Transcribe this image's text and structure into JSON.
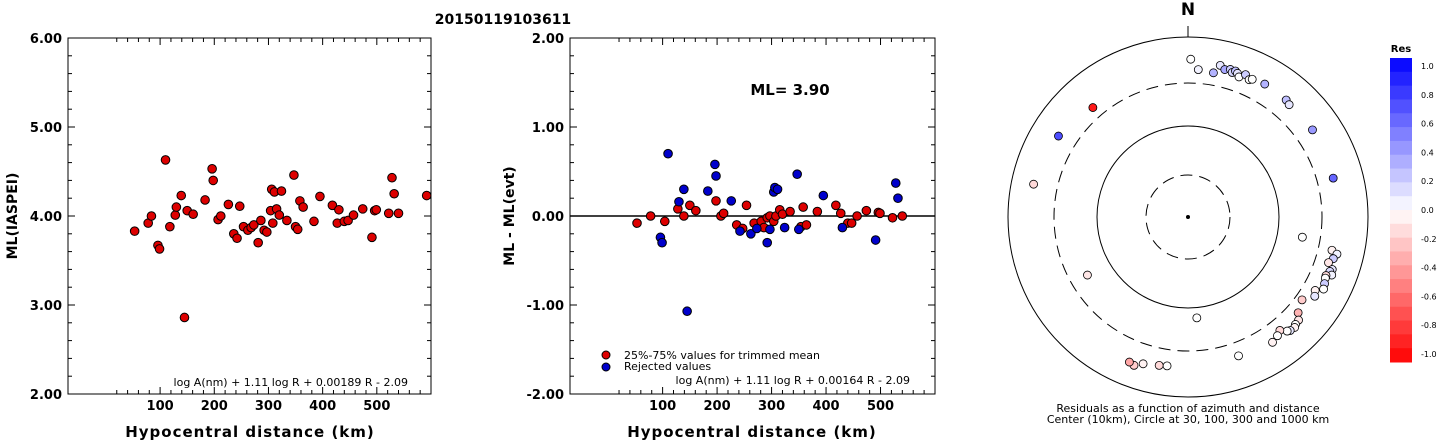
{
  "figure": {
    "title": "20150119103611"
  },
  "chart_data": [
    {
      "type": "scatter",
      "title": "",
      "xlabel": "Hypocentral distance (km)",
      "ylabel": "ML(IASPEI)",
      "xlim": [
        -70,
        600
      ],
      "ylim": [
        2.0,
        6.0
      ],
      "xticks": [
        100,
        200,
        300,
        400,
        500
      ],
      "yticks": [
        "2.00",
        "3.00",
        "4.00",
        "5.00",
        "6.00"
      ],
      "formula": "log A(nm) + 1.11 log R + 0.00189 R - 2.09",
      "point_color": "#dd0000",
      "series": [
        {
          "points": [
            [
              53,
              3.83
            ],
            [
              78,
              3.92
            ],
            [
              84,
              4.0
            ],
            [
              96,
              3.67
            ],
            [
              99,
              3.63
            ],
            [
              110,
              4.63
            ],
            [
              118,
              3.88
            ],
            [
              128,
              4.01
            ],
            [
              130,
              4.1
            ],
            [
              139,
              4.23
            ],
            [
              145,
              2.86
            ],
            [
              150,
              4.06
            ],
            [
              161,
              4.02
            ],
            [
              183,
              4.18
            ],
            [
              196,
              4.53
            ],
            [
              198,
              4.4
            ],
            [
              207,
              3.96
            ],
            [
              212,
              4.0
            ],
            [
              226,
              4.13
            ],
            [
              236,
              3.8
            ],
            [
              242,
              3.75
            ],
            [
              247,
              4.11
            ],
            [
              254,
              3.88
            ],
            [
              262,
              3.84
            ],
            [
              268,
              3.87
            ],
            [
              273,
              3.9
            ],
            [
              281,
              3.7
            ],
            [
              286,
              3.95
            ],
            [
              292,
              3.84
            ],
            [
              297,
              3.82
            ],
            [
              304,
              4.06
            ],
            [
              306,
              4.3
            ],
            [
              308,
              3.92
            ],
            [
              311,
              4.27
            ],
            [
              315,
              4.08
            ],
            [
              320,
              4.01
            ],
            [
              324,
              4.28
            ],
            [
              334,
              3.95
            ],
            [
              347,
              4.46
            ],
            [
              350,
              3.88
            ],
            [
              354,
              3.85
            ],
            [
              358,
              4.17
            ],
            [
              364,
              4.1
            ],
            [
              384,
              3.94
            ],
            [
              395,
              4.22
            ],
            [
              418,
              4.12
            ],
            [
              427,
              3.92
            ],
            [
              430,
              4.07
            ],
            [
              440,
              3.94
            ],
            [
              447,
              3.95
            ],
            [
              457,
              4.01
            ],
            [
              474,
              4.08
            ],
            [
              491,
              3.76
            ],
            [
              496,
              4.06
            ],
            [
              499,
              4.07
            ],
            [
              522,
              4.03
            ],
            [
              528,
              4.43
            ],
            [
              532,
              4.25
            ],
            [
              540,
              4.03
            ],
            [
              592,
              4.23
            ]
          ]
        }
      ]
    },
    {
      "type": "scatter",
      "title": "",
      "xlabel": "Hypocentral distance (km)",
      "ylabel": "ML - ML(evt)",
      "xlim": [
        -70,
        600
      ],
      "ylim": [
        -2.0,
        2.0
      ],
      "xticks": [
        100,
        200,
        300,
        400,
        500
      ],
      "yticks": [
        "-2.00",
        "-1.00",
        "0.00",
        "1.00",
        "2.00"
      ],
      "annotation": "ML= 3.90",
      "formula": "log A(nm) + 1.11 log R + 0.00164 R - 2.09",
      "zero_line": true,
      "series": [
        {
          "name": "25%-75% values for trimmed mean",
          "color": "#dd0000",
          "points": [
            [
              53,
              -0.08
            ],
            [
              78,
              0.0
            ],
            [
              104,
              -0.06
            ],
            [
              128,
              0.08
            ],
            [
              139,
              0.0
            ],
            [
              150,
              0.12
            ],
            [
              161,
              0.06
            ],
            [
              198,
              0.17
            ],
            [
              207,
              0.0
            ],
            [
              212,
              0.03
            ],
            [
              236,
              -0.1
            ],
            [
              247,
              -0.14
            ],
            [
              254,
              0.12
            ],
            [
              268,
              -0.08
            ],
            [
              281,
              -0.06
            ],
            [
              286,
              -0.13
            ],
            [
              292,
              -0.02
            ],
            [
              297,
              0.0
            ],
            [
              304,
              -0.06
            ],
            [
              308,
              0.0
            ],
            [
              315,
              0.07
            ],
            [
              320,
              0.02
            ],
            [
              334,
              0.05
            ],
            [
              354,
              -0.12
            ],
            [
              358,
              0.1
            ],
            [
              364,
              -0.1
            ],
            [
              384,
              0.05
            ],
            [
              418,
              0.12
            ],
            [
              427,
              0.03
            ],
            [
              440,
              -0.08
            ],
            [
              447,
              -0.08
            ],
            [
              457,
              0.0
            ],
            [
              474,
              0.06
            ],
            [
              496,
              0.04
            ],
            [
              499,
              0.03
            ],
            [
              522,
              -0.02
            ],
            [
              540,
              0.0
            ]
          ]
        },
        {
          "name": "Rejected values",
          "color": "#0000cc",
          "points": [
            [
              96,
              -0.24
            ],
            [
              99,
              -0.3
            ],
            [
              110,
              0.7
            ],
            [
              130,
              0.16
            ],
            [
              139,
              0.3
            ],
            [
              145,
              -1.07
            ],
            [
              183,
              0.28
            ],
            [
              196,
              0.58
            ],
            [
              198,
              0.45
            ],
            [
              226,
              0.17
            ],
            [
              242,
              -0.17
            ],
            [
              262,
              -0.2
            ],
            [
              273,
              -0.14
            ],
            [
              292,
              -0.3
            ],
            [
              297,
              -0.15
            ],
            [
              304,
              0.27
            ],
            [
              306,
              0.32
            ],
            [
              311,
              0.3
            ],
            [
              324,
              -0.13
            ],
            [
              347,
              0.47
            ],
            [
              350,
              -0.15
            ],
            [
              395,
              0.23
            ],
            [
              430,
              -0.13
            ],
            [
              491,
              -0.27
            ],
            [
              528,
              0.37
            ],
            [
              532,
              0.2
            ]
          ]
        }
      ]
    },
    {
      "type": "polar-scatter",
      "title": "N",
      "caption_line1": "Residuals as a function of azimuth and distance",
      "caption_line2": "Center (10km), Circle at 30, 100, 300 and 1000 km",
      "colorbar": {
        "title": "Res",
        "labels": [
          "1.0",
          "0.8",
          "0.6",
          "0.4",
          "0.2",
          "0.0",
          "-0.2",
          "-0.4",
          "-0.6",
          "-0.8",
          "-1.0"
        ]
      },
      "rings_km": [
        30,
        100,
        300,
        1000
      ],
      "points": [
        {
          "az": 1,
          "dist_km": 560,
          "res": 0.0
        },
        {
          "az": 4,
          "dist_km": 430,
          "res": 0.05
        },
        {
          "az": 10,
          "dist_km": 415,
          "res": 0.3
        },
        {
          "az": 12,
          "dist_km": 520,
          "res": 0.1
        },
        {
          "az": 14,
          "dist_km": 480,
          "res": 0.35
        },
        {
          "az": 16,
          "dist_km": 500,
          "res": 0.2
        },
        {
          "az": 17,
          "dist_km": 470,
          "res": 0.15
        },
        {
          "az": 18,
          "dist_km": 500,
          "res": 0.25
        },
        {
          "az": 19,
          "dist_km": 480,
          "res": 0.1
        },
        {
          "az": 20,
          "dist_km": 445,
          "res": 0.0
        },
        {
          "az": 22,
          "dist_km": 500,
          "res": 0.2
        },
        {
          "az": 24,
          "dist_km": 460,
          "res": 0.0
        },
        {
          "az": 25,
          "dist_km": 480,
          "res": 0.0
        },
        {
          "az": 30,
          "dist_km": 500,
          "res": 0.3
        },
        {
          "az": 40,
          "dist_km": 490,
          "res": 0.25
        },
        {
          "az": 42,
          "dist_km": 470,
          "res": 0.1
        },
        {
          "az": 55,
          "dist_km": 480,
          "res": 0.4
        },
        {
          "az": 75,
          "dist_km": 460,
          "res": 0.6
        },
        {
          "az": 100,
          "dist_km": 190,
          "res": 0.0
        },
        {
          "az": 103,
          "dist_km": 430,
          "res": -0.05
        },
        {
          "az": 104,
          "dist_km": 500,
          "res": 0.05
        },
        {
          "az": 106,
          "dist_km": 470,
          "res": 0.2
        },
        {
          "az": 108,
          "dist_km": 430,
          "res": -0.1
        },
        {
          "az": 110,
          "dist_km": 500,
          "res": 0.1
        },
        {
          "az": 111,
          "dist_km": 480,
          "res": 0.15
        },
        {
          "az": 112,
          "dist_km": 520,
          "res": 0.05
        },
        {
          "az": 113,
          "dist_km": 455,
          "res": -0.15
        },
        {
          "az": 114,
          "dist_km": 460,
          "res": 0.0
        },
        {
          "az": 116,
          "dist_km": 480,
          "res": 0.2
        },
        {
          "az": 118,
          "dist_km": 500,
          "res": 0.0
        },
        {
          "az": 120,
          "dist_km": 420,
          "res": -0.05
        },
        {
          "az": 122,
          "dist_km": 450,
          "res": 0.1
        },
        {
          "az": 126,
          "dist_km": 360,
          "res": -0.2
        },
        {
          "az": 131,
          "dist_km": 410,
          "res": -0.3
        },
        {
          "az": 133,
          "dist_km": 470,
          "res": -0.1
        },
        {
          "az": 135,
          "dist_km": 480,
          "res": 0.0
        },
        {
          "az": 136,
          "dist_km": 500,
          "res": -0.05
        },
        {
          "az": 138,
          "dist_km": 490,
          "res": 0.1
        },
        {
          "az": 139,
          "dist_km": 470,
          "res": 0.0
        },
        {
          "az": 141,
          "dist_km": 410,
          "res": -0.15
        },
        {
          "az": 143,
          "dist_km": 440,
          "res": 0.0
        },
        {
          "az": 146,
          "dist_km": 470,
          "res": -0.05
        },
        {
          "az": 160,
          "dist_km": 430,
          "res": 0.0
        },
        {
          "az": 175,
          "dist_km": 130,
          "res": 0.0
        },
        {
          "az": 188,
          "dist_km": 460,
          "res": 0.0
        },
        {
          "az": 191,
          "dist_km": 470,
          "res": -0.15
        },
        {
          "az": 197,
          "dist_km": 500,
          "res": -0.05
        },
        {
          "az": 200,
          "dist_km": 560,
          "res": -0.2
        },
        {
          "az": 202,
          "dist_km": 540,
          "res": -0.35
        },
        {
          "az": 240,
          "dist_km": 190,
          "res": -0.1
        },
        {
          "az": 282,
          "dist_km": 560,
          "res": -0.15
        },
        {
          "az": 302,
          "dist_km": 490,
          "res": 0.7
        },
        {
          "az": 319,
          "dist_km": 400,
          "res": -0.9
        }
      ]
    }
  ]
}
